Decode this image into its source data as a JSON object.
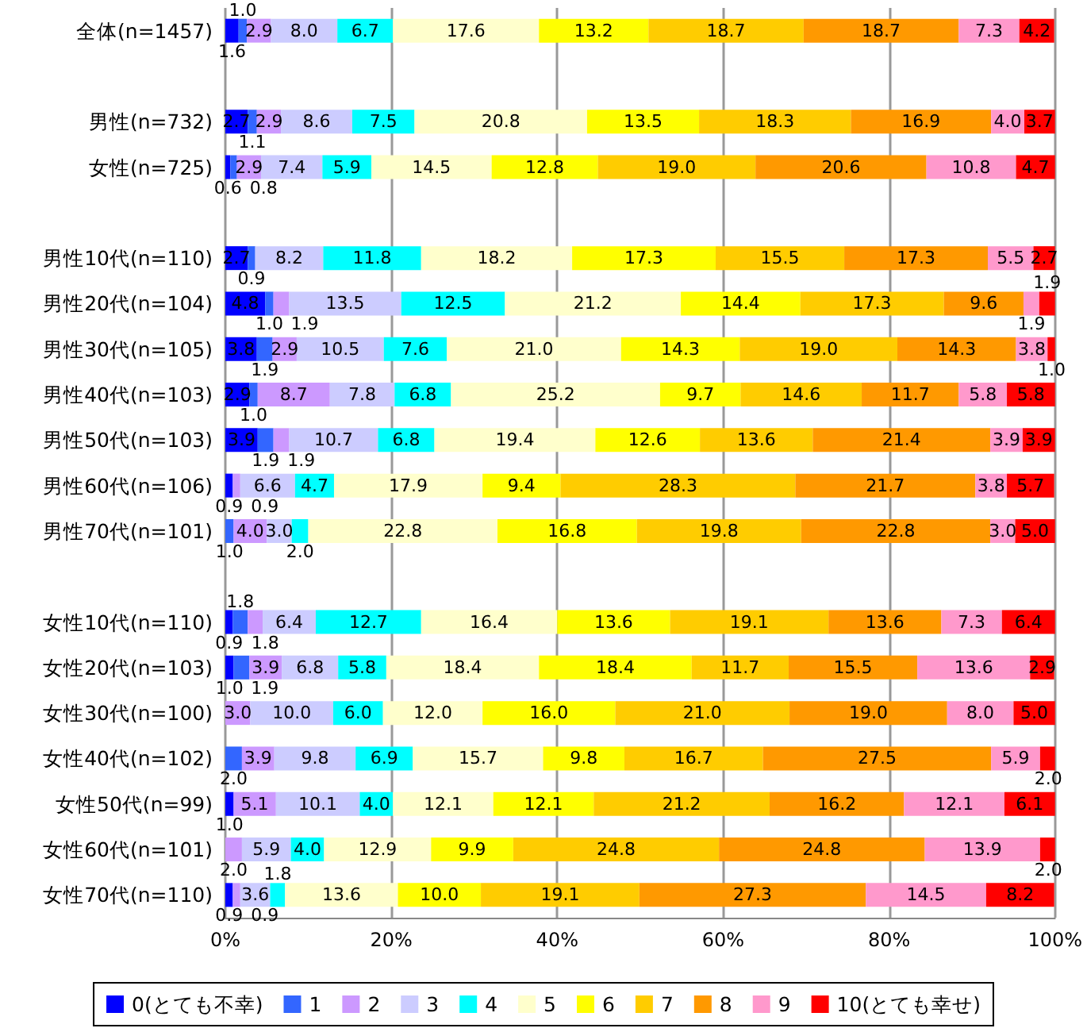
{
  "chart_data": {
    "type": "bar",
    "orientation": "horizontal",
    "stacked": true,
    "categories": [
      "全体(n=1457)",
      null,
      "男性(n=732)",
      "女性(n=725)",
      null,
      "男性10代(n=110)",
      "男性20代(n=104)",
      "男性30代(n=105)",
      "男性40代(n=103)",
      "男性50代(n=103)",
      "男性60代(n=106)",
      "男性70代(n=101)",
      null,
      "女性10代(n=110)",
      "女性20代(n=103)",
      "女性30代(n=100)",
      "女性40代(n=102)",
      "女性50代(n=99)",
      "女性60代(n=101)",
      "女性70代(n=110)"
    ],
    "xlim": [
      0,
      100
    ],
    "xticks": [
      {
        "value": 0,
        "label": "0%"
      },
      {
        "value": 20,
        "label": "20%"
      },
      {
        "value": 40,
        "label": "40%"
      },
      {
        "value": 60,
        "label": "60%"
      },
      {
        "value": 80,
        "label": "80%"
      },
      {
        "value": 100,
        "label": "100%"
      }
    ],
    "grid": "x",
    "legend": "bottom",
    "series": [
      {
        "name": "0(とても不幸)",
        "color": "#0000ff",
        "values": [
          1.6,
          null,
          2.7,
          0.6,
          null,
          2.7,
          4.8,
          3.8,
          2.9,
          3.9,
          0.9,
          0,
          null,
          0.9,
          1.0,
          0,
          0,
          1.0,
          0,
          0.9
        ],
        "value_labels": [
          "1.6",
          null,
          "2.7",
          "0.6",
          null,
          "2.7",
          "4.8",
          "3.8",
          "2.9",
          "3.9",
          "0.9",
          null,
          null,
          "0.9",
          "1.0",
          null,
          null,
          "1.0",
          null,
          "0.9"
        ]
      },
      {
        "name": "1",
        "color": "#3366ff",
        "values": [
          1.0,
          null,
          1.1,
          0.8,
          null,
          0.9,
          1.0,
          1.9,
          1.0,
          1.9,
          0,
          1.0,
          null,
          1.8,
          1.9,
          0,
          2.0,
          0,
          0,
          0
        ],
        "value_labels": [
          "1.0",
          null,
          "1.1",
          "0.8",
          null,
          "0.9",
          "1.0",
          "1.9",
          "1.0",
          "1.9",
          null,
          "1.0",
          null,
          "1.8",
          "1.9",
          null,
          "2.0",
          null,
          null,
          null
        ]
      },
      {
        "name": "2",
        "color": "#cc99ff",
        "values": [
          2.9,
          null,
          2.9,
          2.9,
          null,
          0,
          1.9,
          2.9,
          8.7,
          1.9,
          0.9,
          4.0,
          null,
          1.8,
          3.9,
          3.0,
          3.9,
          5.1,
          2.0,
          0.9
        ],
        "value_labels": [
          "2.9",
          null,
          "2.9",
          "2.9",
          null,
          null,
          "1.9",
          "2.9",
          "8.7",
          "1.9",
          "0.9",
          "4.0",
          null,
          "1.8",
          "3.9",
          "3.0",
          "3.9",
          "5.1",
          "2.0",
          "0.9"
        ]
      },
      {
        "name": "3",
        "color": "#ccccff",
        "values": [
          8.0,
          null,
          8.6,
          7.4,
          null,
          8.2,
          13.5,
          10.5,
          7.8,
          10.7,
          6.6,
          3.0,
          null,
          6.4,
          6.8,
          10.0,
          9.8,
          10.1,
          5.9,
          3.6
        ],
        "value_labels": [
          "8.0",
          null,
          "8.6",
          "7.4",
          null,
          "8.2",
          "13.5",
          "10.5",
          "7.8",
          "10.7",
          "6.6",
          "3.0",
          null,
          "6.4",
          "6.8",
          "10.0",
          "9.8",
          "10.1",
          "5.9",
          "3.6"
        ]
      },
      {
        "name": "4",
        "color": "#00ffff",
        "values": [
          6.7,
          null,
          7.5,
          5.9,
          null,
          11.8,
          12.5,
          7.6,
          6.8,
          6.8,
          4.7,
          2.0,
          null,
          12.7,
          5.8,
          6.0,
          6.9,
          4.0,
          4.0,
          1.8
        ],
        "value_labels": [
          "6.7",
          null,
          "7.5",
          "5.9",
          null,
          "11.8",
          "12.5",
          "7.6",
          "6.8",
          "6.8",
          "4.7",
          "2.0",
          null,
          "12.7",
          "5.8",
          "6.0",
          "6.9",
          "4.0",
          "4.0",
          "1.8"
        ]
      },
      {
        "name": "5",
        "color": "#ffffcc",
        "values": [
          17.6,
          null,
          20.8,
          14.5,
          null,
          18.2,
          21.2,
          21.0,
          25.2,
          19.4,
          17.9,
          22.8,
          null,
          16.4,
          18.4,
          12.0,
          15.7,
          12.1,
          12.9,
          13.6
        ],
        "value_labels": [
          "17.6",
          null,
          "20.8",
          "14.5",
          null,
          "18.2",
          "21.2",
          "21.0",
          "25.2",
          "19.4",
          "17.9",
          "22.8",
          null,
          "16.4",
          "18.4",
          "12.0",
          "15.7",
          "12.1",
          "12.9",
          "13.6"
        ]
      },
      {
        "name": "6",
        "color": "#ffff00",
        "values": [
          13.2,
          null,
          13.5,
          12.8,
          null,
          17.3,
          14.4,
          14.3,
          9.7,
          12.6,
          9.4,
          16.8,
          null,
          13.6,
          18.4,
          16.0,
          9.8,
          12.1,
          9.9,
          10.0
        ],
        "value_labels": [
          "13.2",
          null,
          "13.5",
          "12.8",
          null,
          "17.3",
          "14.4",
          "14.3",
          "9.7",
          "12.6",
          "9.4",
          "16.8",
          null,
          "13.6",
          "18.4",
          "16.0",
          "9.8",
          "12.1",
          "9.9",
          "10.0"
        ]
      },
      {
        "name": "7",
        "color": "#ffcc00",
        "values": [
          18.7,
          null,
          18.3,
          19.0,
          null,
          15.5,
          17.3,
          19.0,
          14.6,
          13.6,
          28.3,
          19.8,
          null,
          19.1,
          11.7,
          21.0,
          16.7,
          21.2,
          24.8,
          19.1
        ],
        "value_labels": [
          "18.7",
          null,
          "18.3",
          "19.0",
          null,
          "15.5",
          "17.3",
          "19.0",
          "14.6",
          "13.6",
          "28.3",
          "19.8",
          null,
          "19.1",
          "11.7",
          "21.0",
          "16.7",
          "21.2",
          "24.8",
          "19.1"
        ]
      },
      {
        "name": "8",
        "color": "#ff9900",
        "values": [
          18.7,
          null,
          16.9,
          20.6,
          null,
          17.3,
          9.6,
          14.3,
          11.7,
          21.4,
          21.7,
          22.8,
          null,
          13.6,
          15.5,
          19.0,
          27.5,
          16.2,
          24.8,
          27.3
        ],
        "value_labels": [
          "18.7",
          null,
          "16.9",
          "20.6",
          null,
          "17.3",
          "9.6",
          "14.3",
          "11.7",
          "21.4",
          "21.7",
          "22.8",
          null,
          "13.6",
          "15.5",
          "19.0",
          "27.5",
          "16.2",
          "24.8",
          "27.3"
        ]
      },
      {
        "name": "9",
        "color": "#ff99cc",
        "values": [
          7.3,
          null,
          4.0,
          10.8,
          null,
          5.5,
          1.9,
          3.8,
          5.8,
          3.9,
          3.8,
          3.0,
          null,
          7.3,
          13.6,
          8.0,
          5.9,
          12.1,
          13.9,
          14.5
        ],
        "value_labels": [
          "7.3",
          null,
          "4.0",
          "10.8",
          null,
          "5.5",
          "1.9",
          "3.8",
          "5.8",
          "3.9",
          "3.8",
          "3.0",
          null,
          "7.3",
          "13.6",
          "8.0",
          "5.9",
          "12.1",
          "13.9",
          "14.5"
        ]
      },
      {
        "name": "10(とても幸せ)",
        "color": "#ff0000",
        "values": [
          4.2,
          null,
          3.7,
          4.7,
          null,
          2.7,
          1.9,
          1.0,
          5.8,
          3.9,
          5.7,
          5.0,
          null,
          6.4,
          2.9,
          5.0,
          2.0,
          6.1,
          2.0,
          8.2
        ],
        "value_labels": [
          "4.2",
          null,
          "3.7",
          "4.7",
          null,
          "2.7",
          "1.9",
          "1.0",
          "5.8",
          "3.9",
          "5.7",
          "5.0",
          null,
          "6.4",
          "2.9",
          "5.0",
          "2.0",
          "6.1",
          "2.0",
          "8.2"
        ]
      }
    ]
  }
}
